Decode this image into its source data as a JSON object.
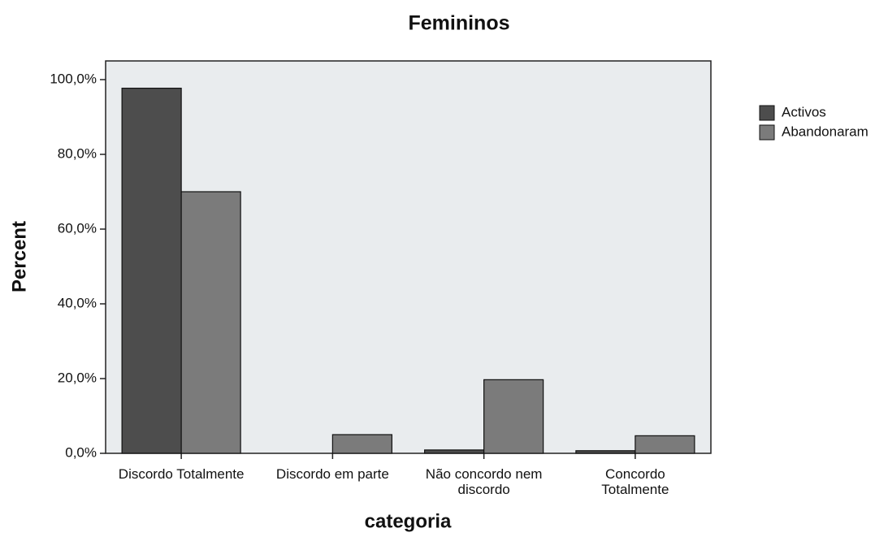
{
  "chart_data": {
    "type": "bar",
    "title": "Femininos",
    "x_label": "categoria",
    "y_label": "Percent",
    "categories": [
      "Discordo Totalmente",
      "Discordo em parte",
      "Não concordo nem discordo",
      "Concordo Totalmente"
    ],
    "series": [
      {
        "name": "Activos",
        "color": "#4d4d4d",
        "values": [
          97.7,
          0,
          0.9,
          0.7
        ]
      },
      {
        "name": "Abandonaram",
        "color": "#7b7b7b",
        "values": [
          70,
          5,
          19.7,
          4.7
        ]
      }
    ],
    "ylim": [
      0,
      105
    ],
    "yticks": [
      {
        "value": 0,
        "label": "0,0%"
      },
      {
        "value": 20,
        "label": "20,0%"
      },
      {
        "value": 40,
        "label": "40,0%"
      },
      {
        "value": 60,
        "label": "60,0%"
      },
      {
        "value": 80,
        "label": "80,0%"
      },
      {
        "value": 100,
        "label": "100,0%"
      }
    ],
    "legend": "right"
  }
}
